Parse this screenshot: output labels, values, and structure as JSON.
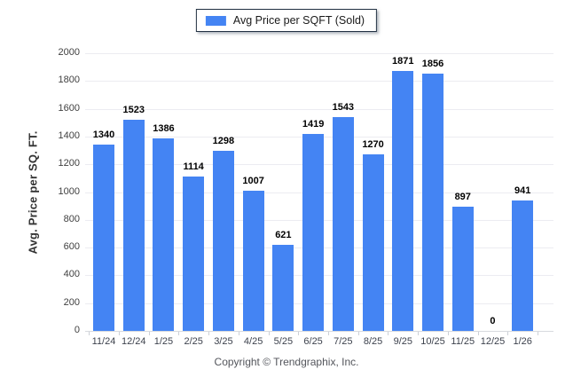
{
  "legend": {
    "label": "Avg Price per SQFT (Sold)",
    "swatch_color": "#4484f3"
  },
  "footer": {
    "text": "Copyright © Trendgraphix, Inc."
  },
  "colors": {
    "bar": "#4484f3",
    "gridline": "#ececf1",
    "baseline": "#d7dade",
    "tick_text": "#3d424d",
    "value_text": "#000000",
    "legend_border": "#223142"
  },
  "chart_data": {
    "type": "bar",
    "title": "",
    "series_name": "Avg Price per SQFT (Sold)",
    "categories": [
      "11/24",
      "12/24",
      "1/25",
      "2/25",
      "3/25",
      "4/25",
      "5/25",
      "6/25",
      "7/25",
      "8/25",
      "9/25",
      "10/25",
      "11/25",
      "12/25",
      "1/26"
    ],
    "values": [
      1340,
      1523,
      1386,
      1114,
      1298,
      1007,
      621,
      1419,
      1543,
      1270,
      1871,
      1856,
      897,
      0,
      941
    ],
    "xlabel": "",
    "ylabel": "Avg. Price per SQ. FT.",
    "ylim": [
      0,
      2000
    ],
    "ytick_step": 200,
    "yticks": [
      0,
      200,
      400,
      600,
      800,
      1000,
      1200,
      1400,
      1600,
      1800,
      2000
    ],
    "grid": true,
    "legend_position": "top-center",
    "bar_color": "#4484f3"
  }
}
